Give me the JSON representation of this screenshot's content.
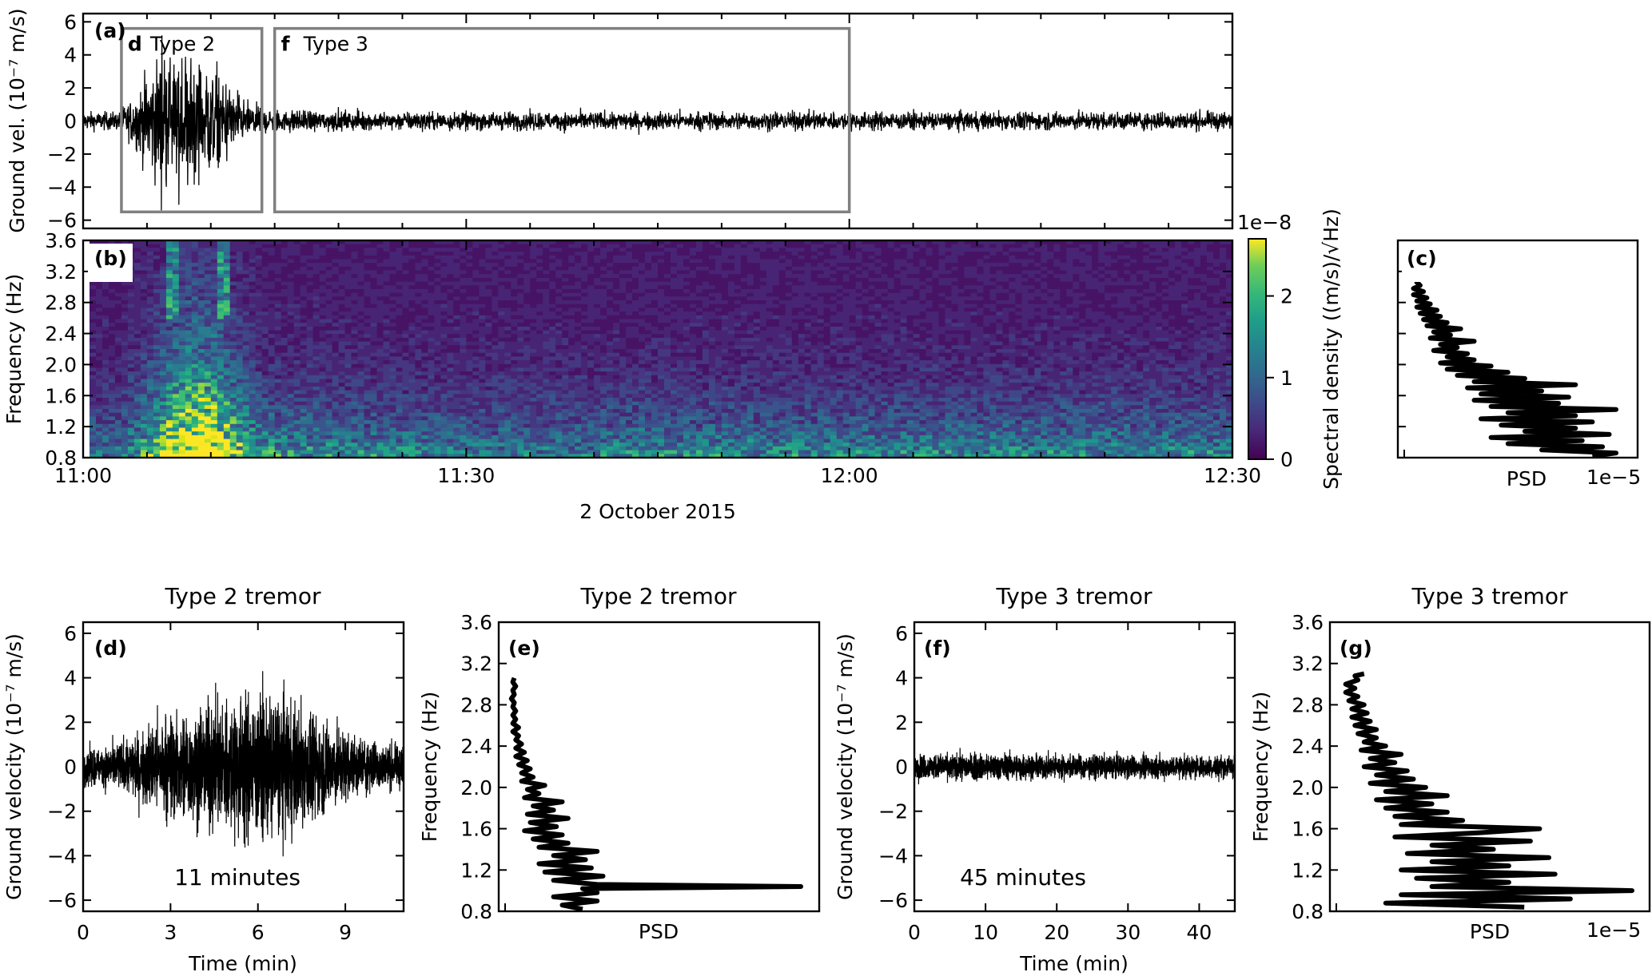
{
  "chart_data": [
    {
      "panel": "(a)",
      "type": "line",
      "title": "",
      "xlabel": "",
      "ylabel": "Ground vel. (10⁻⁷ m/s)",
      "xlim_min": [
        0,
        90
      ],
      "ylim": [
        -6.5,
        6.5
      ],
      "yticks": [
        6,
        4,
        2,
        0,
        -2,
        -4,
        -6
      ],
      "ytick_labels": [
        "6",
        "4",
        "2",
        "0",
        "−2",
        "−4",
        "−6"
      ],
      "boxes": [
        {
          "letter": "d",
          "label": "Type 2",
          "x_min": [
            3,
            14
          ],
          "y_range": [
            -5.5,
            5.6
          ]
        },
        {
          "letter": "f",
          "label": "Type 3",
          "x_min": [
            15,
            60
          ],
          "y_range": [
            -5.5,
            5.6
          ]
        }
      ],
      "trace_summary": {
        "background_amp": 0.4,
        "type2_peak_amp": 5.8,
        "type2_window_min": [
          3,
          14
        ]
      }
    },
    {
      "panel": "(b)",
      "type": "heatmap",
      "xlabel": "2 October 2015",
      "ylabel": "Frequency (Hz)",
      "xtick_labels": [
        "11:00",
        "11:30",
        "12:00",
        "12:30"
      ],
      "xticks_min": [
        0,
        30,
        60,
        90
      ],
      "ylim": [
        0.8,
        3.6
      ],
      "yticks": [
        3.6,
        3.2,
        2.8,
        2.4,
        2.0,
        1.6,
        1.2,
        0.8
      ],
      "ytick_labels": [
        "3.6",
        "3.2",
        "2.8",
        "2.4",
        "2.0",
        "1.6",
        "1.2",
        "0.8"
      ],
      "colorbar": {
        "label": "Spectral density ((m/s)/√Hz)",
        "offset_text": "1e−8",
        "range": [
          0,
          2.7
        ],
        "ticks": [
          0,
          1,
          2
        ],
        "tick_labels": [
          "0",
          "1",
          "2"
        ],
        "colormap": "viridis"
      }
    },
    {
      "panel": "(c)",
      "type": "line",
      "xlabel": "PSD",
      "offset_text": "1e−5",
      "ylim": [
        0.8,
        3.6
      ],
      "curve": [
        [
          0.82,
          0.55
        ],
        [
          0.86,
          0.62
        ],
        [
          0.9,
          0.4
        ],
        [
          0.94,
          0.58
        ],
        [
          0.98,
          0.3
        ],
        [
          1.02,
          0.52
        ],
        [
          1.06,
          0.25
        ],
        [
          1.1,
          0.6
        ],
        [
          1.14,
          0.35
        ],
        [
          1.18,
          0.5
        ],
        [
          1.22,
          0.28
        ],
        [
          1.26,
          0.55
        ],
        [
          1.3,
          0.22
        ],
        [
          1.34,
          0.5
        ],
        [
          1.38,
          0.3
        ],
        [
          1.42,
          0.62
        ],
        [
          1.46,
          0.25
        ],
        [
          1.5,
          0.45
        ],
        [
          1.54,
          0.2
        ],
        [
          1.58,
          0.48
        ],
        [
          1.62,
          0.22
        ],
        [
          1.66,
          0.4
        ],
        [
          1.7,
          0.18
        ],
        [
          1.74,
          0.5
        ],
        [
          1.78,
          0.2
        ],
        [
          1.82,
          0.35
        ],
        [
          1.86,
          0.15
        ],
        [
          1.9,
          0.3
        ],
        [
          1.94,
          0.12
        ],
        [
          1.98,
          0.25
        ],
        [
          2.02,
          0.1
        ],
        [
          2.06,
          0.2
        ],
        [
          2.1,
          0.12
        ],
        [
          2.14,
          0.18
        ],
        [
          2.18,
          0.08
        ],
        [
          2.22,
          0.15
        ],
        [
          2.26,
          0.1
        ],
        [
          2.3,
          0.2
        ],
        [
          2.34,
          0.07
        ],
        [
          2.38,
          0.13
        ],
        [
          2.42,
          0.08
        ],
        [
          2.46,
          0.16
        ],
        [
          2.5,
          0.06
        ],
        [
          2.54,
          0.12
        ],
        [
          2.58,
          0.05
        ],
        [
          2.62,
          0.1
        ],
        [
          2.66,
          0.04
        ],
        [
          2.7,
          0.09
        ],
        [
          2.74,
          0.03
        ],
        [
          2.78,
          0.07
        ],
        [
          2.82,
          0.03
        ],
        [
          2.86,
          0.06
        ],
        [
          2.9,
          0.02
        ],
        [
          2.94,
          0.05
        ],
        [
          2.98,
          0.02
        ],
        [
          3.02,
          0.04
        ],
        [
          3.06,
          0.03
        ],
        [
          3.1,
          0.04
        ]
      ]
    },
    {
      "panel": "(d)",
      "type": "line",
      "title": "Type 2 tremor",
      "xlabel": "Time (min)",
      "ylabel": "Ground velocity (10⁻⁷ m/s)",
      "xlim": [
        0,
        11
      ],
      "xticks": [
        0,
        3,
        6,
        9
      ],
      "xtick_labels": [
        "0",
        "3",
        "6",
        "9"
      ],
      "ylim": [
        -6.5,
        6.5
      ],
      "yticks": [
        6,
        4,
        2,
        0,
        -2,
        -4,
        -6
      ],
      "ytick_labels": [
        "6",
        "4",
        "2",
        "0",
        "−2",
        "−4",
        "−6"
      ],
      "annotation": "11 minutes"
    },
    {
      "panel": "(e)",
      "type": "line",
      "title": "Type 2 tremor",
      "xlabel": "PSD",
      "ylabel": "Frequency (Hz)",
      "ylim": [
        0.8,
        3.6
      ],
      "yticks": [
        3.6,
        3.2,
        2.8,
        2.4,
        2.0,
        1.6,
        1.2,
        0.8
      ],
      "ytick_labels": [
        "3.6",
        "3.2",
        "2.8",
        "2.4",
        "2.0",
        "1.6",
        "1.2",
        "0.8"
      ],
      "curve": [
        [
          0.82,
          0.25
        ],
        [
          0.86,
          0.18
        ],
        [
          0.9,
          0.3
        ],
        [
          0.94,
          0.15
        ],
        [
          0.98,
          0.3
        ],
        [
          1.02,
          0.25
        ],
        [
          1.04,
          1.0
        ],
        [
          1.06,
          0.3
        ],
        [
          1.1,
          0.15
        ],
        [
          1.14,
          0.32
        ],
        [
          1.18,
          0.12
        ],
        [
          1.22,
          0.28
        ],
        [
          1.26,
          0.1
        ],
        [
          1.3,
          0.26
        ],
        [
          1.34,
          0.15
        ],
        [
          1.38,
          0.3
        ],
        [
          1.42,
          0.1
        ],
        [
          1.46,
          0.2
        ],
        [
          1.5,
          0.08
        ],
        [
          1.54,
          0.18
        ],
        [
          1.58,
          0.05
        ],
        [
          1.62,
          0.16
        ],
        [
          1.66,
          0.07
        ],
        [
          1.7,
          0.2
        ],
        [
          1.74,
          0.06
        ],
        [
          1.78,
          0.15
        ],
        [
          1.82,
          0.08
        ],
        [
          1.86,
          0.18
        ],
        [
          1.9,
          0.05
        ],
        [
          1.94,
          0.1
        ],
        [
          1.98,
          0.06
        ],
        [
          2.02,
          0.12
        ],
        [
          2.06,
          0.04
        ],
        [
          2.1,
          0.08
        ],
        [
          2.14,
          0.04
        ],
        [
          2.18,
          0.07
        ],
        [
          2.22,
          0.03
        ],
        [
          2.26,
          0.06
        ],
        [
          2.3,
          0.02
        ],
        [
          2.34,
          0.05
        ],
        [
          2.38,
          0.02
        ],
        [
          2.42,
          0.04
        ],
        [
          2.46,
          0.02
        ],
        [
          2.5,
          0.03
        ],
        [
          2.54,
          0.01
        ],
        [
          2.58,
          0.03
        ],
        [
          2.62,
          0.01
        ],
        [
          2.66,
          0.02
        ],
        [
          2.7,
          0.01
        ],
        [
          2.74,
          0.02
        ],
        [
          2.78,
          0.01
        ],
        [
          2.82,
          0.015
        ],
        [
          2.86,
          0.005
        ],
        [
          2.9,
          0.015
        ],
        [
          2.94,
          0.01
        ],
        [
          2.98,
          0.02
        ],
        [
          3.02,
          0.01
        ],
        [
          3.06,
          0.015
        ]
      ]
    },
    {
      "panel": "(f)",
      "type": "line",
      "title": "Type 3 tremor",
      "xlabel": "Time (min)",
      "ylabel": "Ground velocity (10⁻⁷ m/s)",
      "xlim": [
        0,
        45
      ],
      "xticks": [
        0,
        10,
        20,
        30,
        40
      ],
      "xtick_labels": [
        "0",
        "10",
        "20",
        "30",
        "40"
      ],
      "ylim": [
        -6.5,
        6.5
      ],
      "yticks": [
        6,
        4,
        2,
        0,
        -2,
        -4,
        -6
      ],
      "ytick_labels": [
        "6",
        "4",
        "2",
        "0",
        "−2",
        "−4",
        "−6"
      ],
      "annotation": "45 minutes"
    },
    {
      "panel": "(g)",
      "type": "line",
      "title": "Type 3 tremor",
      "xlabel": "PSD",
      "ylabel": "Frequency (Hz)",
      "offset_text": "1e−5",
      "ylim": [
        0.8,
        3.6
      ],
      "yticks": [
        3.6,
        3.2,
        2.8,
        2.4,
        2.0,
        1.6,
        1.2,
        0.8
      ],
      "ytick_labels": [
        "3.6",
        "3.2",
        "2.8",
        "2.4",
        "2.0",
        "1.6",
        "1.2",
        "0.8"
      ],
      "curve": [
        [
          0.84,
          0.6
        ],
        [
          0.88,
          0.15
        ],
        [
          0.92,
          0.75
        ],
        [
          0.96,
          0.2
        ],
        [
          1.0,
          0.95
        ],
        [
          1.04,
          0.3
        ],
        [
          1.08,
          0.55
        ],
        [
          1.12,
          0.25
        ],
        [
          1.16,
          0.7
        ],
        [
          1.2,
          0.2
        ],
        [
          1.24,
          0.55
        ],
        [
          1.28,
          0.3
        ],
        [
          1.32,
          0.68
        ],
        [
          1.36,
          0.22
        ],
        [
          1.4,
          0.5
        ],
        [
          1.44,
          0.3
        ],
        [
          1.48,
          0.62
        ],
        [
          1.52,
          0.18
        ],
        [
          1.56,
          0.45
        ],
        [
          1.6,
          0.65
        ],
        [
          1.64,
          0.2
        ],
        [
          1.68,
          0.4
        ],
        [
          1.72,
          0.18
        ],
        [
          1.76,
          0.35
        ],
        [
          1.8,
          0.15
        ],
        [
          1.84,
          0.3
        ],
        [
          1.88,
          0.12
        ],
        [
          1.92,
          0.35
        ],
        [
          1.96,
          0.15
        ],
        [
          2.0,
          0.28
        ],
        [
          2.04,
          0.1
        ],
        [
          2.08,
          0.24
        ],
        [
          2.12,
          0.12
        ],
        [
          2.16,
          0.22
        ],
        [
          2.2,
          0.08
        ],
        [
          2.24,
          0.18
        ],
        [
          2.28,
          0.1
        ],
        [
          2.32,
          0.2
        ],
        [
          2.36,
          0.07
        ],
        [
          2.4,
          0.15
        ],
        [
          2.44,
          0.08
        ],
        [
          2.48,
          0.12
        ],
        [
          2.52,
          0.06
        ],
        [
          2.56,
          0.12
        ],
        [
          2.6,
          0.05
        ],
        [
          2.64,
          0.1
        ],
        [
          2.68,
          0.04
        ],
        [
          2.72,
          0.09
        ],
        [
          2.76,
          0.04
        ],
        [
          2.8,
          0.08
        ],
        [
          2.84,
          0.03
        ],
        [
          2.88,
          0.06
        ],
        [
          2.92,
          0.02
        ],
        [
          2.96,
          0.05
        ],
        [
          3.0,
          0.02
        ],
        [
          3.04,
          0.06
        ],
        [
          3.08,
          0.05
        ],
        [
          3.1,
          0.08
        ]
      ]
    }
  ]
}
